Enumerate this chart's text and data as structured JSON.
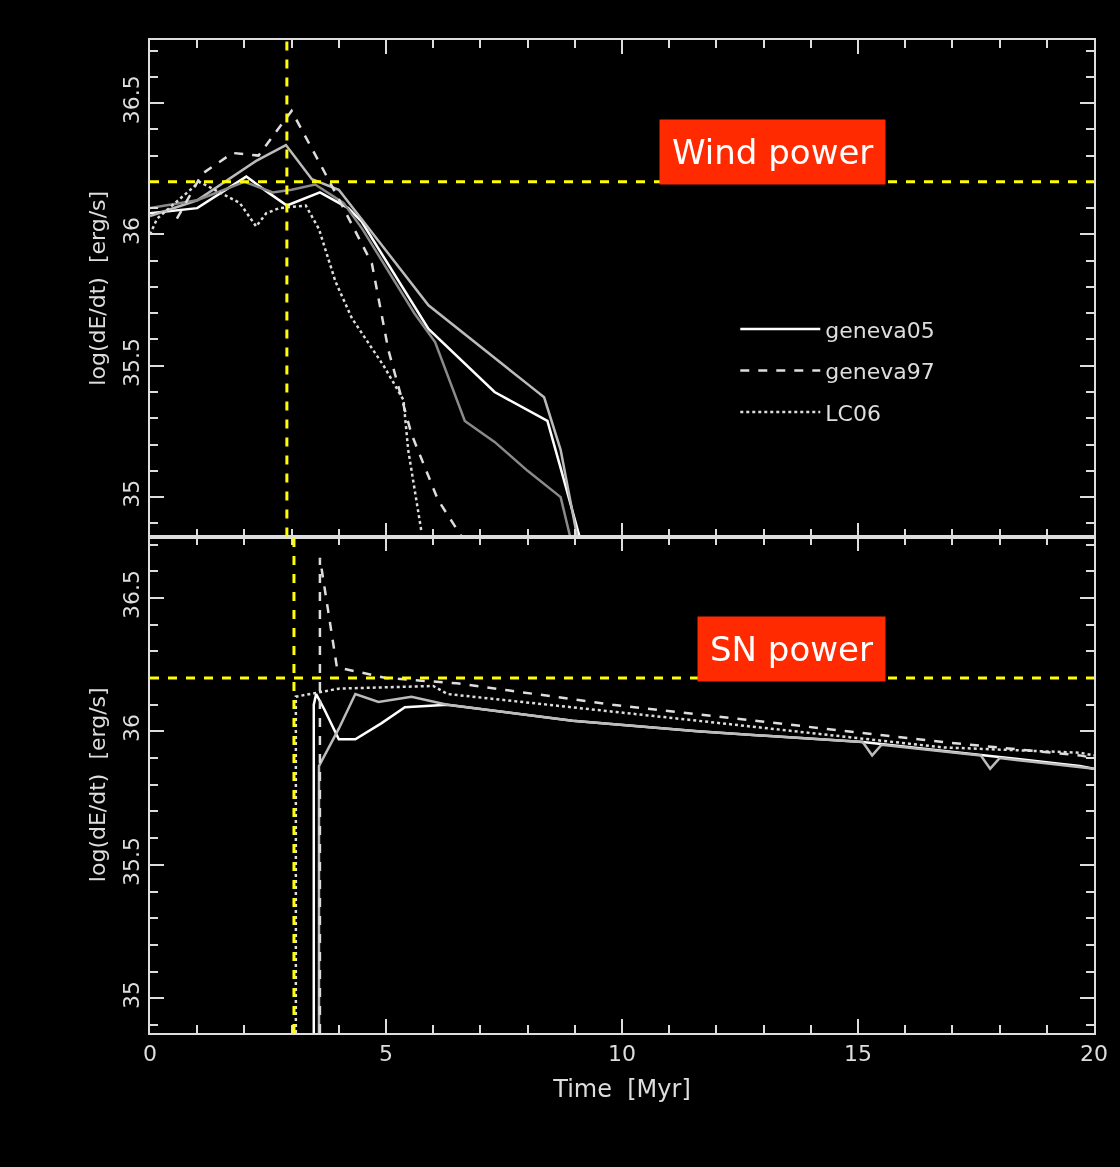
{
  "chart_data": [
    {
      "type": "line",
      "ylabel": "log(dE/dt)  [erg/s]",
      "xlim": [
        0,
        20
      ],
      "xticks": [
        0,
        5,
        10,
        15,
        20
      ],
      "ylim": [
        34.85,
        36.74
      ],
      "yticks": [
        35,
        35.5,
        36,
        36.5
      ],
      "tick_labels": "y",
      "legend": "right",
      "annotations": [
        "Wind power"
      ],
      "ref_lines": [
        {
          "axis": "y",
          "value": 36.2,
          "color": "#ffff00",
          "line_style": "dashed"
        },
        {
          "axis": "x",
          "value": 2.9,
          "color": "#ffff00",
          "line_style": "dashed"
        }
      ],
      "series": [
        {
          "name": "geneva05",
          "color": "#ffffff",
          "line_style": "solid",
          "x": [
            0,
            1,
            2.04,
            2.5,
            2.9,
            3.6,
            4.2,
            4.48,
            5.9,
            7.3,
            8.42,
            8.7,
            9.1
          ],
          "values": [
            36.08,
            36.1,
            36.22,
            36.16,
            36.11,
            36.16,
            36.1,
            36.05,
            35.64,
            35.4,
            35.29,
            35.11,
            34.85
          ]
        },
        {
          "color": "#bbbbbb",
          "line_style": "solid",
          "x": [
            0,
            1,
            2.25,
            2.88,
            3.43,
            4.0,
            5.9,
            8.0,
            8.35,
            8.7,
            9.05
          ],
          "values": [
            36.07,
            36.13,
            36.28,
            36.34,
            36.21,
            36.17,
            35.73,
            35.43,
            35.38,
            35.18,
            34.85
          ]
        },
        {
          "color": "#8a8a8a",
          "line_style": "solid",
          "x": [
            0,
            1,
            2.0,
            2.6,
            3.0,
            3.5,
            4.1,
            4.5,
            5.6,
            6.04,
            6.67,
            7.3,
            8.0,
            8.7,
            8.9
          ],
          "values": [
            36.1,
            36.13,
            36.2,
            36.16,
            36.17,
            36.19,
            36.12,
            36.02,
            35.7,
            35.59,
            35.29,
            35.21,
            35.1,
            35.0,
            34.85
          ]
        },
        {
          "name": "geneva97",
          "color": "#dddddd",
          "line_style": "dashed",
          "x": [
            0.57,
            1.1,
            1.75,
            2.3,
            3.0,
            3.6,
            4.07,
            4.7,
            5.05,
            5.54,
            6.1,
            6.6
          ],
          "values": [
            36.06,
            36.23,
            36.31,
            36.3,
            36.47,
            36.27,
            36.11,
            35.89,
            35.56,
            35.24,
            34.99,
            34.85
          ]
        },
        {
          "name": "LC06",
          "color": "#dddddd",
          "line_style": "dotted",
          "x": [
            0,
            0.15,
            1.05,
            1.9,
            2.25,
            2.46,
            2.74,
            3.3,
            3.58,
            3.93,
            4.28,
            4.95,
            5.37,
            5.47,
            5.75
          ],
          "values": [
            36.0,
            36.06,
            36.2,
            36.12,
            36.03,
            36.08,
            36.1,
            36.11,
            36.02,
            35.82,
            35.68,
            35.5,
            35.37,
            35.18,
            34.87
          ]
        }
      ]
    },
    {
      "type": "line",
      "xlabel": "Time  [Myr]",
      "ylabel": "log(dE/dt)  [erg/s]",
      "xlim": [
        0,
        20
      ],
      "xticks": [
        0,
        5,
        10,
        15,
        20
      ],
      "ylim": [
        34.87,
        36.73
      ],
      "yticks": [
        35,
        35.5,
        36,
        36.5
      ],
      "annotations": [
        "SN power"
      ],
      "ref_lines": [
        {
          "axis": "y",
          "value": 36.2,
          "color": "#ffff00",
          "line_style": "dashed"
        },
        {
          "axis": "x",
          "value": 3.05,
          "color": "#ffff00",
          "line_style": "dashed"
        }
      ],
      "series": [
        {
          "color": "#ffffff",
          "line_style": "solid",
          "x": [
            3.47,
            3.47,
            3.52,
            3.7,
            4.0,
            4.35,
            4.9,
            5.4,
            6.3,
            8.95,
            11.6,
            15.1,
            17.7,
            19.7,
            20
          ],
          "values": [
            34.87,
            36.1,
            36.14,
            36.08,
            35.97,
            35.97,
            36.03,
            36.09,
            36.1,
            36.04,
            36.0,
            35.96,
            35.91,
            35.87,
            35.86
          ]
        },
        {
          "color": "#bbbbbb",
          "line_style": "solid",
          "x": [
            3.58,
            3.58,
            4.0,
            4.35,
            4.84,
            5.54,
            6.3,
            8.95,
            11.6,
            15.1,
            15.3,
            15.5,
            17.6,
            17.8,
            18.0,
            20
          ],
          "values": [
            34.87,
            35.87,
            36.01,
            36.14,
            36.11,
            36.13,
            36.1,
            36.04,
            36.0,
            35.96,
            35.91,
            35.95,
            35.91,
            35.86,
            35.9,
            35.86
          ]
        },
        {
          "color": "#dddddd",
          "line_style": "dashed",
          "x": [
            3.6,
            3.6,
            3.96,
            5.0,
            6.5,
            9.8,
            13.3,
            16.8,
            19.7,
            20
          ],
          "values": [
            34.87,
            36.65,
            36.24,
            36.2,
            36.18,
            36.1,
            36.03,
            35.96,
            35.91,
            35.9
          ]
        },
        {
          "color": "#dddddd",
          "line_style": "dotted",
          "x": [
            3.09,
            3.09,
            4.0,
            6.0,
            6.3,
            11.6,
            16.8,
            19.7,
            20
          ],
          "values": [
            34.87,
            36.13,
            36.16,
            36.17,
            36.14,
            36.04,
            35.94,
            35.92,
            35.91
          ]
        }
      ]
    }
  ]
}
